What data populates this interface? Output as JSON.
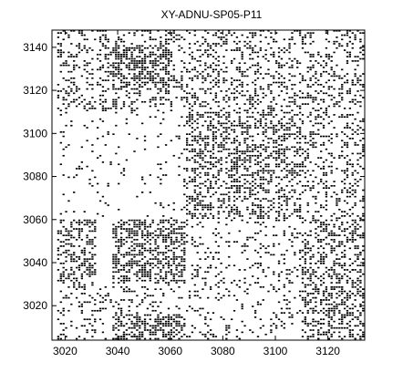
{
  "chart_data": {
    "type": "heatmap",
    "title": "XY-ADNU-SP05-P11",
    "xlabel": "",
    "ylabel": "",
    "xlim": [
      3015,
      3134
    ],
    "ylim": [
      3004,
      3148
    ],
    "xticks": [
      3020,
      3040,
      3060,
      3080,
      3100,
      3120
    ],
    "yticks": [
      3020,
      3040,
      3060,
      3080,
      3100,
      3120,
      3140
    ],
    "grid": false,
    "colormap": [
      "#ffffff",
      "#000000"
    ],
    "blocks": [
      {
        "x": [
          3017,
          3032
        ],
        "y": [
          3030,
          3060
        ],
        "density": 0.45
      },
      {
        "x": [
          3038,
          3066
        ],
        "y": [
          3030,
          3060
        ],
        "density": 0.55
      },
      {
        "x": [
          3017,
          3066
        ],
        "y": [
          3004,
          3030
        ],
        "density": 0.18
      },
      {
        "x": [
          3038,
          3066
        ],
        "y": [
          3004,
          3016
        ],
        "density": 0.5
      },
      {
        "x": [
          3066,
          3110
        ],
        "y": [
          3060,
          3110
        ],
        "density": 0.42
      },
      {
        "x": [
          3110,
          3134
        ],
        "y": [
          3060,
          3110
        ],
        "density": 0.25
      },
      {
        "x": [
          3066,
          3134
        ],
        "y": [
          3004,
          3060
        ],
        "density": 0.15
      },
      {
        "x": [
          3110,
          3134
        ],
        "y": [
          3004,
          3060
        ],
        "density": 0.3
      },
      {
        "x": [
          3017,
          3134
        ],
        "y": [
          3110,
          3148
        ],
        "density": 0.28
      },
      {
        "x": [
          3038,
          3060
        ],
        "y": [
          3120,
          3140
        ],
        "density": 0.45
      },
      {
        "x": [
          3017,
          3066
        ],
        "y": [
          3060,
          3110
        ],
        "density": 0.06
      }
    ]
  }
}
